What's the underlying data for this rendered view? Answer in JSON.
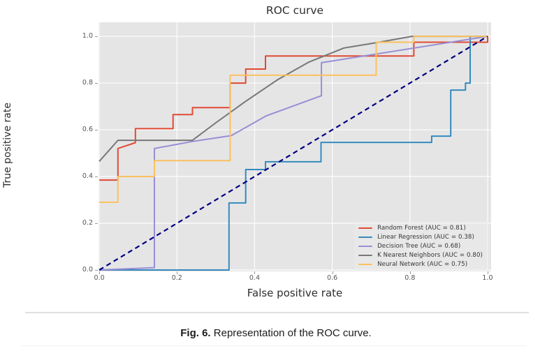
{
  "figure": {
    "title": "ROC curve",
    "x_axis": {
      "label": "False positive rate",
      "tick_labels": [
        "0.0",
        "0.2",
        "0.4",
        "0.6",
        "0.8",
        "1.0"
      ],
      "tick_values": [
        0,
        0.2,
        0.4,
        0.6,
        0.8,
        1.0
      ]
    },
    "y_axis": {
      "label": "True positive rate",
      "tick_labels": [
        "0.0",
        "0.2",
        "0.4",
        "0.6",
        "0.8",
        "1.0"
      ],
      "tick_values": [
        0,
        0.2,
        0.4,
        0.6,
        0.8,
        1.0
      ]
    },
    "plot_background": "#e5e5e6",
    "grid_color": "#ffffff"
  },
  "chart_data": {
    "type": "line",
    "title": "ROC curve",
    "xlabel": "False positive rate",
    "ylabel": "True positive rate",
    "xlim": [
      -0.002,
      1.009
    ],
    "ylim": [
      -0.006,
      1.06
    ],
    "grid": true,
    "legend_position": "lower right",
    "series": [
      {
        "name": "Random Forest",
        "auc": 0.81,
        "label": "Random Forest (AUC = 0.81)",
        "color": "#e24a33",
        "points": [
          [
            0,
            0.385
          ],
          [
            0.048,
            0.385
          ],
          [
            0.048,
            0.52
          ],
          [
            0.093,
            0.545
          ],
          [
            0.093,
            0.605
          ],
          [
            0.19,
            0.605
          ],
          [
            0.19,
            0.665
          ],
          [
            0.24,
            0.665
          ],
          [
            0.24,
            0.695
          ],
          [
            0.337,
            0.695
          ],
          [
            0.337,
            0.8
          ],
          [
            0.377,
            0.8
          ],
          [
            0.377,
            0.86
          ],
          [
            0.428,
            0.86
          ],
          [
            0.428,
            0.916
          ],
          [
            0.81,
            0.916
          ],
          [
            0.81,
            0.975
          ],
          [
            1,
            0.975
          ],
          [
            1,
            1
          ]
        ]
      },
      {
        "name": "Linear Regression",
        "auc": 0.38,
        "label": "Linear Regression (AUC = 0.38)",
        "color": "#348abd",
        "points": [
          [
            0,
            0
          ],
          [
            0.334,
            0
          ],
          [
            0.334,
            0.287
          ],
          [
            0.377,
            0.287
          ],
          [
            0.377,
            0.43
          ],
          [
            0.428,
            0.43
          ],
          [
            0.428,
            0.463
          ],
          [
            0.571,
            0.463
          ],
          [
            0.571,
            0.546
          ],
          [
            0.856,
            0.546
          ],
          [
            0.856,
            0.573
          ],
          [
            0.905,
            0.573
          ],
          [
            0.905,
            0.77
          ],
          [
            0.943,
            0.77
          ],
          [
            0.943,
            0.8
          ],
          [
            0.955,
            0.8
          ],
          [
            0.955,
            1
          ],
          [
            1,
            1
          ]
        ]
      },
      {
        "name": "Decision Tree",
        "auc": 0.68,
        "label": "Decision Tree (AUC = 0.68)",
        "color": "#988ed5",
        "points": [
          [
            0,
            0
          ],
          [
            0.142,
            0.01
          ],
          [
            0.142,
            0.52
          ],
          [
            0.24,
            0.55
          ],
          [
            0.34,
            0.575
          ],
          [
            0.43,
            0.66
          ],
          [
            0.572,
            0.746
          ],
          [
            0.572,
            0.887
          ],
          [
            1,
            1
          ]
        ]
      },
      {
        "name": "K Nearest Neighbors",
        "auc": 0.8,
        "label": "K Nearest Neighbors (AUC = 0.80)",
        "color": "#777777",
        "points": [
          [
            0,
            0.465
          ],
          [
            0.048,
            0.555
          ],
          [
            0.24,
            0.555
          ],
          [
            0.3,
            0.63
          ],
          [
            0.375,
            0.72
          ],
          [
            0.46,
            0.815
          ],
          [
            0.54,
            0.89
          ],
          [
            0.63,
            0.95
          ],
          [
            0.71,
            0.972
          ],
          [
            0.805,
            1
          ],
          [
            1,
            1
          ]
        ]
      },
      {
        "name": "Neural Network",
        "auc": 0.75,
        "label": "Neural Network (AUC = 0.75)",
        "color": "#fbc15e",
        "points": [
          [
            0,
            0.29
          ],
          [
            0.048,
            0.29
          ],
          [
            0.048,
            0.4
          ],
          [
            0.142,
            0.4
          ],
          [
            0.142,
            0.468
          ],
          [
            0.337,
            0.468
          ],
          [
            0.337,
            0.834
          ],
          [
            0.713,
            0.834
          ],
          [
            0.713,
            0.975
          ],
          [
            0.81,
            0.975
          ],
          [
            0.81,
            1
          ],
          [
            1,
            1
          ]
        ]
      }
    ],
    "reference_line": {
      "name": "chance-diagonal",
      "color": "#000080",
      "style": "dashed",
      "points": [
        [
          0,
          0
        ],
        [
          1,
          1
        ]
      ]
    }
  },
  "caption": {
    "bold": "Fig. 6.",
    "text": " Representation of the ROC curve."
  }
}
